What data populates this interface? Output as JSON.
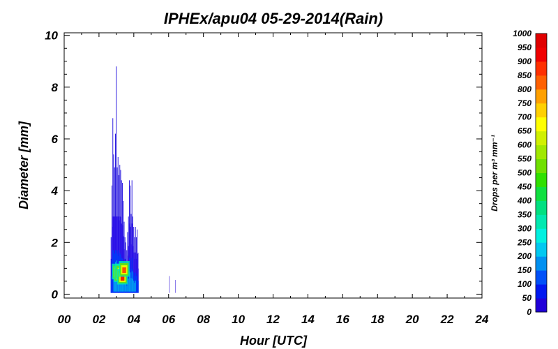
{
  "chart_data": {
    "type": "heatmap",
    "title": "IPHEx/apu04 05-29-2014(Rain)",
    "xlabel": "Hour [UTC]",
    "ylabel": "Diameter [mm]",
    "xlim": [
      0,
      24
    ],
    "ylim": [
      -0.15,
      10.1
    ],
    "x_ticks": [
      "00",
      "02",
      "04",
      "06",
      "08",
      "10",
      "12",
      "14",
      "16",
      "18",
      "20",
      "22",
      "24"
    ],
    "y_ticks": [
      "0",
      "2",
      "4",
      "6",
      "8",
      "10"
    ],
    "colorbar": {
      "label": "Drops per m³ mm⁻¹",
      "tick_labels": [
        "0",
        "50",
        "100",
        "150",
        "200",
        "250",
        "300",
        "350",
        "400",
        "450",
        "500",
        "550",
        "600",
        "650",
        "700",
        "750",
        "800",
        "850",
        "900",
        "950",
        "1000"
      ],
      "colors": [
        "#2000d8",
        "#0018f0",
        "#0050f8",
        "#0090f0",
        "#00c8f0",
        "#00f0e0",
        "#00e8b0",
        "#00e080",
        "#10e040",
        "#30e000",
        "#70e000",
        "#a0e800",
        "#d0f000",
        "#ffff00",
        "#ffd000",
        "#ffa000",
        "#ff6000",
        "#ff3000",
        "#f00000",
        "#e00000"
      ]
    },
    "rain_columns": [
      {
        "hour": 2.7,
        "top": 2.2
      },
      {
        "hour": 2.75,
        "top": 4.2
      },
      {
        "hour": 2.8,
        "top": 6.8
      },
      {
        "hour": 2.85,
        "top": 5.4
      },
      {
        "hour": 2.9,
        "top": 4.9
      },
      {
        "hour": 2.95,
        "top": 6.2
      },
      {
        "hour": 3.0,
        "top": 8.8
      },
      {
        "hour": 3.05,
        "top": 4.9
      },
      {
        "hour": 3.1,
        "top": 5.3
      },
      {
        "hour": 3.15,
        "top": 4.6
      },
      {
        "hour": 3.2,
        "top": 5.0
      },
      {
        "hour": 3.25,
        "top": 4.8
      },
      {
        "hour": 3.3,
        "top": 4.4
      },
      {
        "hour": 3.35,
        "top": 4.3
      },
      {
        "hour": 3.4,
        "top": 3.6
      },
      {
        "hour": 3.45,
        "top": 2.8
      },
      {
        "hour": 3.5,
        "top": 2.2
      },
      {
        "hour": 3.55,
        "top": 2.0
      },
      {
        "hour": 3.6,
        "top": 1.7
      },
      {
        "hour": 3.65,
        "top": 2.4
      },
      {
        "hour": 3.7,
        "top": 3.0
      },
      {
        "hour": 3.75,
        "top": 4.4
      },
      {
        "hour": 3.8,
        "top": 4.2
      },
      {
        "hour": 3.85,
        "top": 3.1
      },
      {
        "hour": 3.9,
        "top": 4.4
      },
      {
        "hour": 3.95,
        "top": 3.0
      },
      {
        "hour": 4.0,
        "top": 2.6
      },
      {
        "hour": 4.05,
        "top": 2.2
      },
      {
        "hour": 4.1,
        "top": 2.6
      },
      {
        "hour": 4.15,
        "top": 2.2
      },
      {
        "hour": 4.2,
        "top": 2.5
      },
      {
        "hour": 4.25,
        "top": 1.6
      },
      {
        "hour": 6.05,
        "top": 0.7
      },
      {
        "hour": 6.4,
        "top": 0.55
      }
    ],
    "rain_core": [
      {
        "hour": 3.05,
        "d": 0.8,
        "level": 15
      },
      {
        "hour": 3.15,
        "d": 0.7,
        "level": 19
      },
      {
        "hour": 3.25,
        "d": 0.8,
        "level": 19
      },
      {
        "hour": 3.35,
        "d": 0.6,
        "level": 18
      },
      {
        "hour": 3.45,
        "d": 0.9,
        "level": 17
      }
    ]
  }
}
